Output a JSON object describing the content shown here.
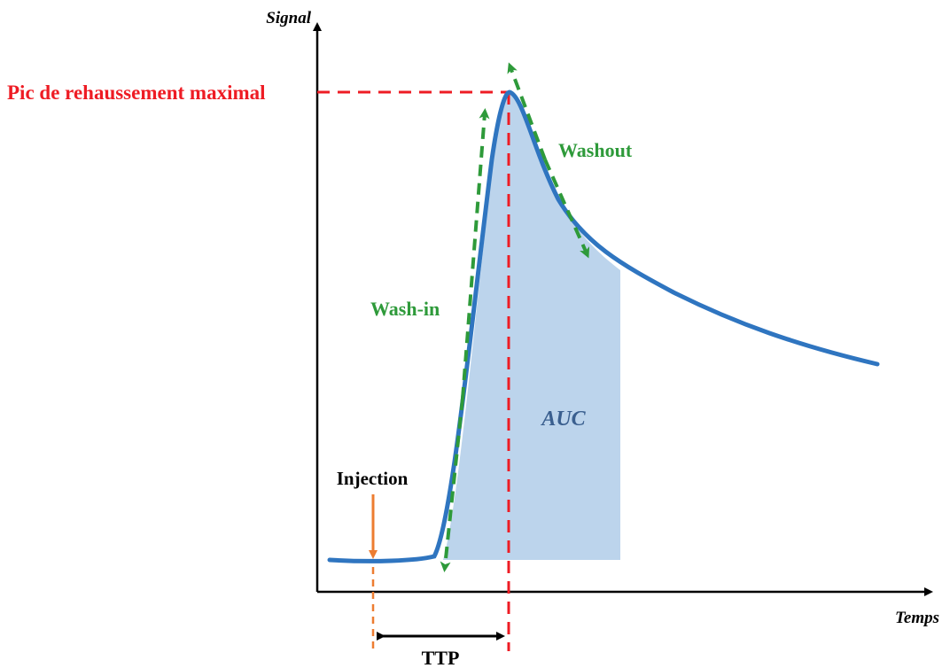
{
  "labels": {
    "y_axis": "Signal",
    "x_axis": "Temps",
    "peak": "Pic de rehaussement maximal",
    "washout": "Washout",
    "washin": "Wash-in",
    "auc": "AUC",
    "injection": "Injection",
    "ttp": "TTP"
  },
  "colors": {
    "curve": "#2f75c0",
    "auc_fill": "#bcd4ec",
    "peak_guides": "#ee1c24",
    "slope_arrows": "#2e9a3a",
    "injection_arrow": "#ed7d31",
    "axes": "#000000"
  }
}
